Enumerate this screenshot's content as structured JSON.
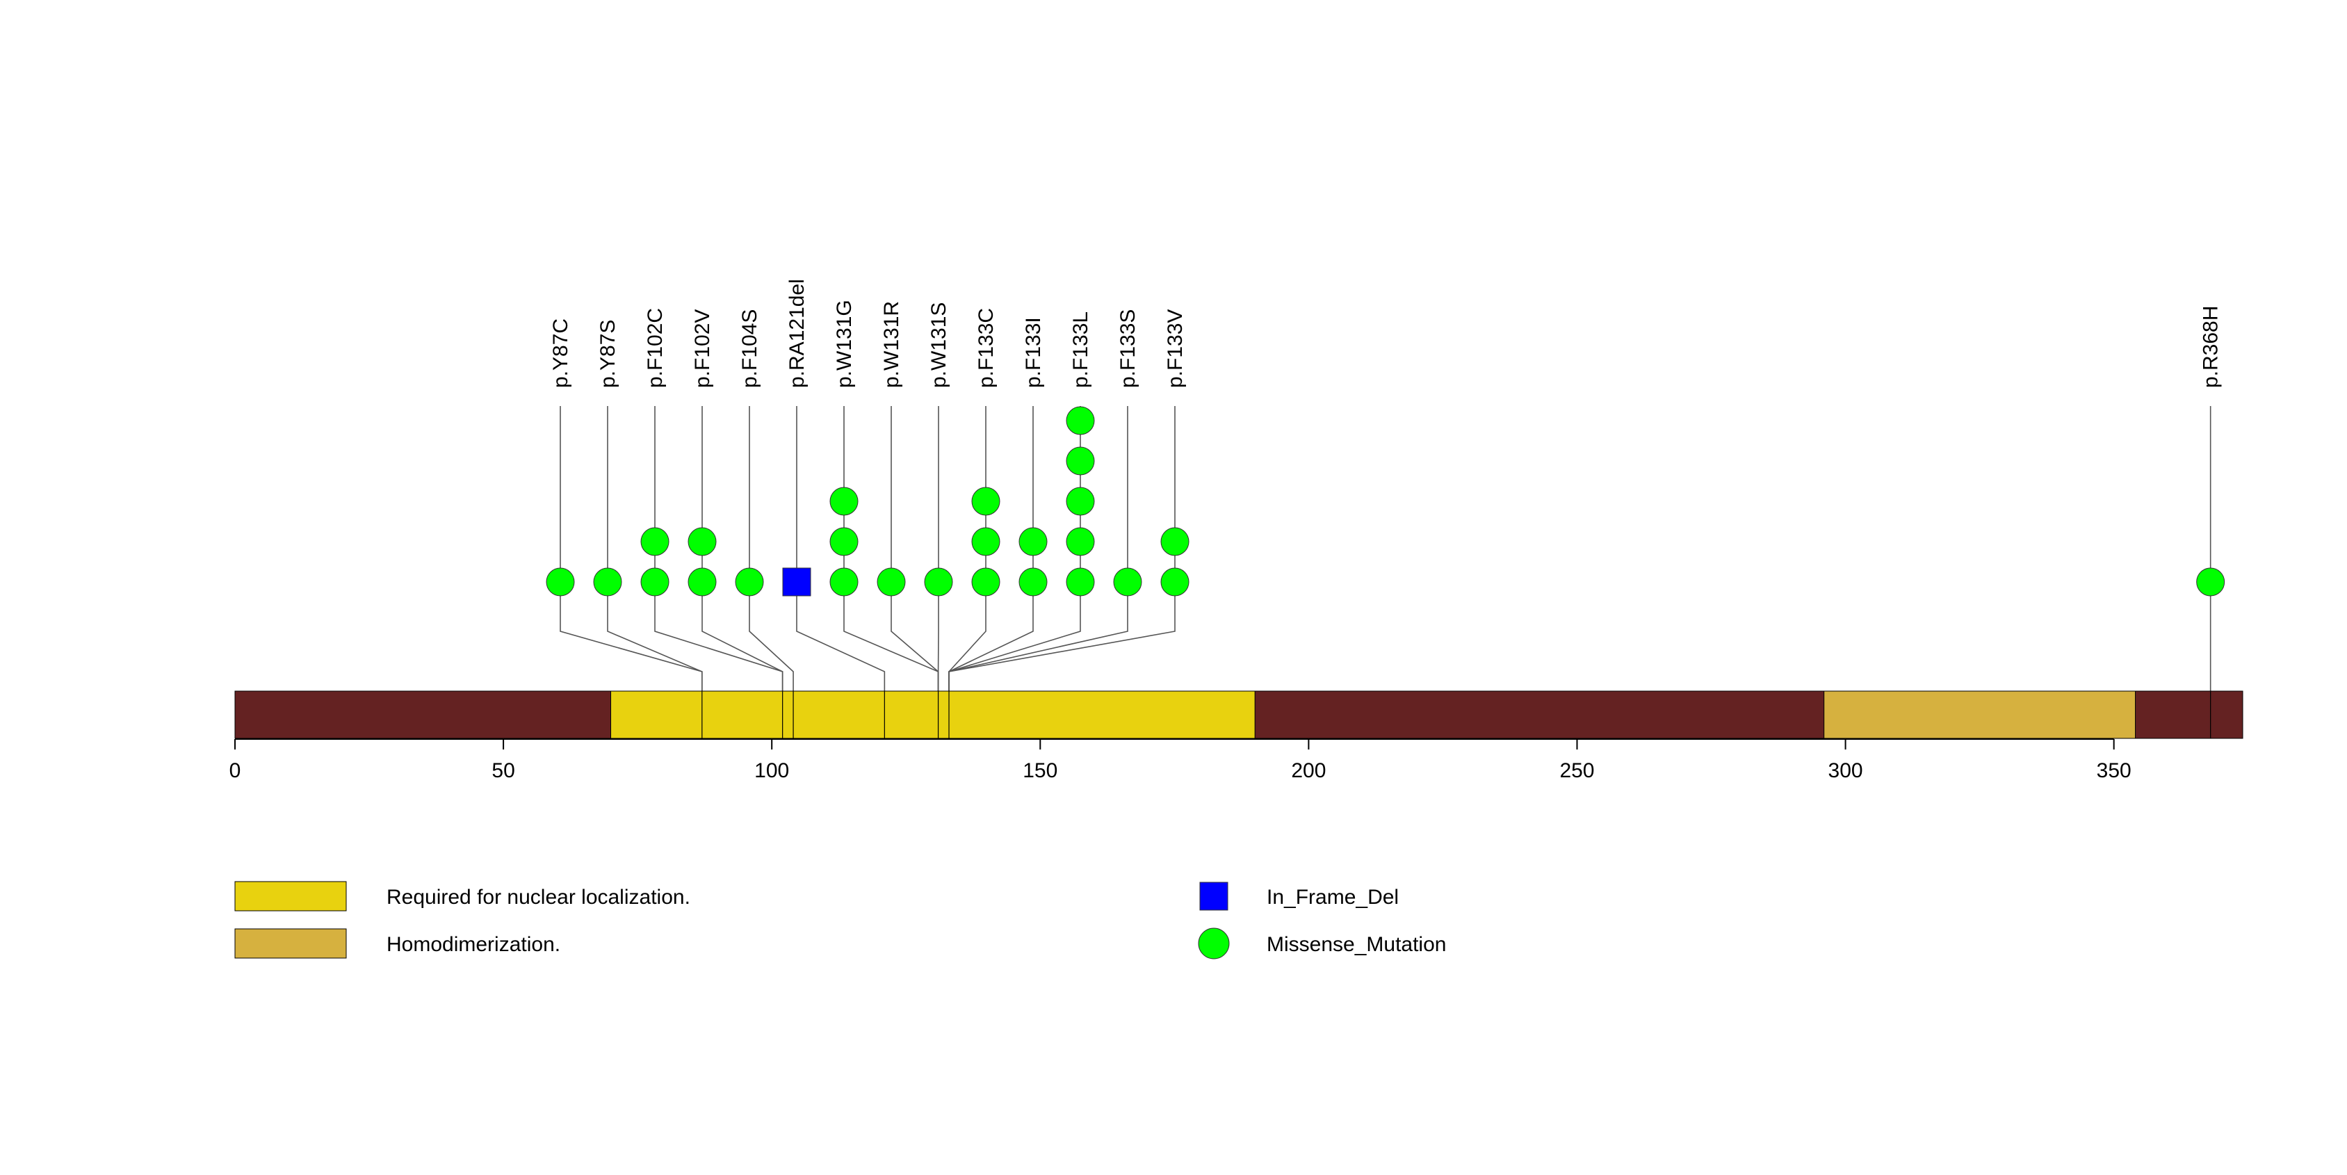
{
  "chart_data": {
    "type": "lollipop",
    "protein_length": 374,
    "x_axis": {
      "ticks": [
        0,
        50,
        100,
        150,
        200,
        250,
        300,
        350
      ],
      "tick_labels": [
        "0",
        "50",
        "100",
        "150",
        "200",
        "250",
        "300",
        "350"
      ]
    },
    "domains": [
      {
        "name": "Required for nuclear localization.",
        "start": 70,
        "end": 190,
        "color": "#e8d20f"
      },
      {
        "name": "Homodimerization.",
        "start": 296,
        "end": 354,
        "color": "#d6b13f"
      }
    ],
    "backbone_color": "#642222",
    "mutation_types": [
      {
        "name": "In_Frame_Del",
        "shape": "square",
        "color": "#0000ff"
      },
      {
        "name": "Missense_Mutation",
        "shape": "circle",
        "color": "#00ff00"
      }
    ],
    "mutations": [
      {
        "label": "p.Y87C",
        "position": 87,
        "count": 1,
        "type": "Missense_Mutation"
      },
      {
        "label": "p.Y87S",
        "position": 87,
        "count": 1,
        "type": "Missense_Mutation"
      },
      {
        "label": "p.F102C",
        "position": 102,
        "count": 2,
        "type": "Missense_Mutation"
      },
      {
        "label": "p.F102V",
        "position": 102,
        "count": 2,
        "type": "Missense_Mutation"
      },
      {
        "label": "p.F104S",
        "position": 104,
        "count": 1,
        "type": "Missense_Mutation"
      },
      {
        "label": "p.RA121del",
        "position": 121,
        "count": 1,
        "type": "In_Frame_Del"
      },
      {
        "label": "p.W131G",
        "position": 131,
        "count": 3,
        "type": "Missense_Mutation"
      },
      {
        "label": "p.W131R",
        "position": 131,
        "count": 1,
        "type": "Missense_Mutation"
      },
      {
        "label": "p.W131S",
        "position": 131,
        "count": 1,
        "type": "Missense_Mutation"
      },
      {
        "label": "p.F133C",
        "position": 133,
        "count": 3,
        "type": "Missense_Mutation"
      },
      {
        "label": "p.F133I",
        "position": 133,
        "count": 2,
        "type": "Missense_Mutation"
      },
      {
        "label": "p.F133L",
        "position": 133,
        "count": 5,
        "type": "Missense_Mutation"
      },
      {
        "label": "p.F133S",
        "position": 133,
        "count": 1,
        "type": "Missense_Mutation"
      },
      {
        "label": "p.F133V",
        "position": 133,
        "count": 2,
        "type": "Missense_Mutation"
      },
      {
        "label": "p.R368H",
        "position": 368,
        "count": 1,
        "type": "Missense_Mutation"
      }
    ]
  }
}
